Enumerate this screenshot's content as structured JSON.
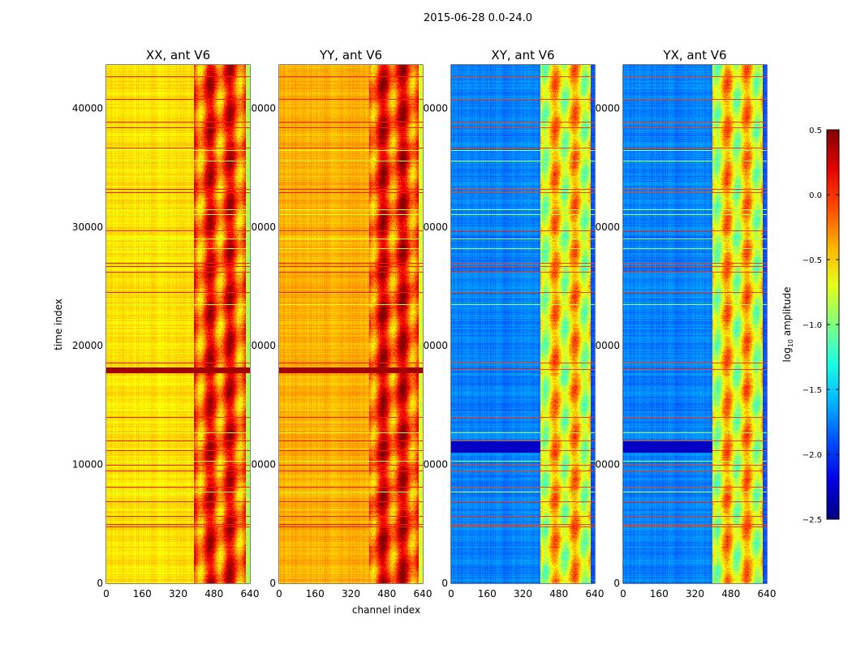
{
  "chart_data": {
    "type": "heatmap",
    "suptitle": "2015-06-28 0.0-24.0",
    "xlabel": "channel index",
    "ylabel": "time index",
    "xlim": [
      0,
      640
    ],
    "ylim": [
      0,
      43650
    ],
    "xticks": [
      "0",
      "160",
      "320",
      "480",
      "640"
    ],
    "xtick_values": [
      0,
      160,
      320,
      480,
      640
    ],
    "yticks": [
      "0",
      "10000",
      "20000",
      "30000",
      "40000"
    ],
    "ytick_values": [
      0,
      10000,
      20000,
      30000,
      40000
    ],
    "panels": [
      {
        "title": "XX, ant V6",
        "low_channel_level": -0.55,
        "high_channel_level": -0.05,
        "transition_channel": 390
      },
      {
        "title": "YY, ant V6",
        "low_channel_level": -0.4,
        "high_channel_level": 0.0,
        "transition_channel": 400
      },
      {
        "title": "XY, ant V6",
        "low_channel_level": -1.75,
        "high_channel_level": -0.6,
        "transition_channel": 395
      },
      {
        "title": "YX, ant V6",
        "low_channel_level": -1.75,
        "high_channel_level": -0.6,
        "transition_channel": 395
      }
    ],
    "bright_rows": [
      4800,
      5000,
      5700,
      6900,
      8100,
      9500,
      10000,
      11200,
      12000,
      14000,
      18000,
      18600,
      24500,
      26200,
      26700,
      27000,
      29700,
      32900,
      33200,
      36700,
      38400,
      38900,
      40800,
      42700
    ],
    "dim_rows": [
      7700,
      10300,
      12700,
      23500,
      28200,
      29000,
      31100,
      31500,
      35600,
      36500
    ],
    "colorbar": {
      "label": "log10 amplitude",
      "label_base": "log",
      "label_sub": "10",
      "label_rest": " amplitude",
      "range": [
        -2.5,
        0.5
      ],
      "ticks": [
        "0.5",
        "0.0",
        "−0.5",
        "−1.0",
        "−1.5",
        "−2.0",
        "−2.5"
      ],
      "tick_values": [
        0.5,
        0.0,
        -0.5,
        -1.0,
        -1.5,
        -2.0,
        -2.5
      ],
      "colormap": "jet"
    }
  }
}
